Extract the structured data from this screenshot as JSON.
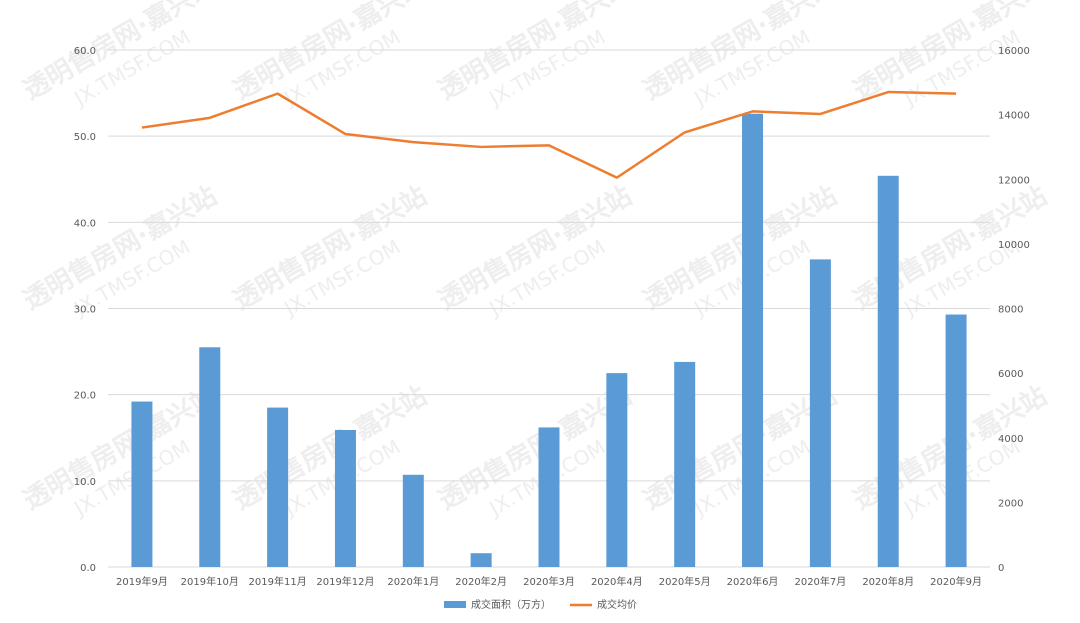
{
  "watermark": {
    "line1": "透明售房网·嘉兴站",
    "line2": "JX.TMSF.COM"
  },
  "chart_data": {
    "type": "bar",
    "categories": [
      "2019年9月",
      "2019年10月",
      "2019年11月",
      "2019年12月",
      "2020年1月",
      "2020年2月",
      "2020年3月",
      "2020年4月",
      "2020年5月",
      "2020年6月",
      "2020年7月",
      "2020年8月",
      "2020年9月"
    ],
    "left_axis": {
      "min": 0,
      "max": 60,
      "step": 10,
      "ticks": [
        "0.0",
        "10.0",
        "20.0",
        "30.0",
        "40.0",
        "50.0",
        "60.0"
      ]
    },
    "right_axis": {
      "min": 0,
      "max": 16000,
      "step": 2000,
      "ticks": [
        "0",
        "2000",
        "4000",
        "6000",
        "8000",
        "10000",
        "12000",
        "14000",
        "16000"
      ]
    },
    "grid": true,
    "legend_position": "bottom",
    "series": [
      {
        "name": "成交面积（万方）",
        "type": "bar",
        "axis": "left",
        "color": "#5b9bd5",
        "values": [
          19.2,
          25.5,
          18.5,
          15.9,
          10.7,
          1.6,
          16.2,
          22.5,
          23.8,
          52.6,
          35.7,
          45.4,
          29.3
        ]
      },
      {
        "name": "成交均价",
        "type": "line",
        "axis": "right",
        "color": "#ed7d31",
        "values": [
          13600,
          13900,
          14650,
          13400,
          13150,
          13000,
          13050,
          12050,
          13450,
          14100,
          14020,
          14700,
          14650
        ]
      }
    ]
  }
}
